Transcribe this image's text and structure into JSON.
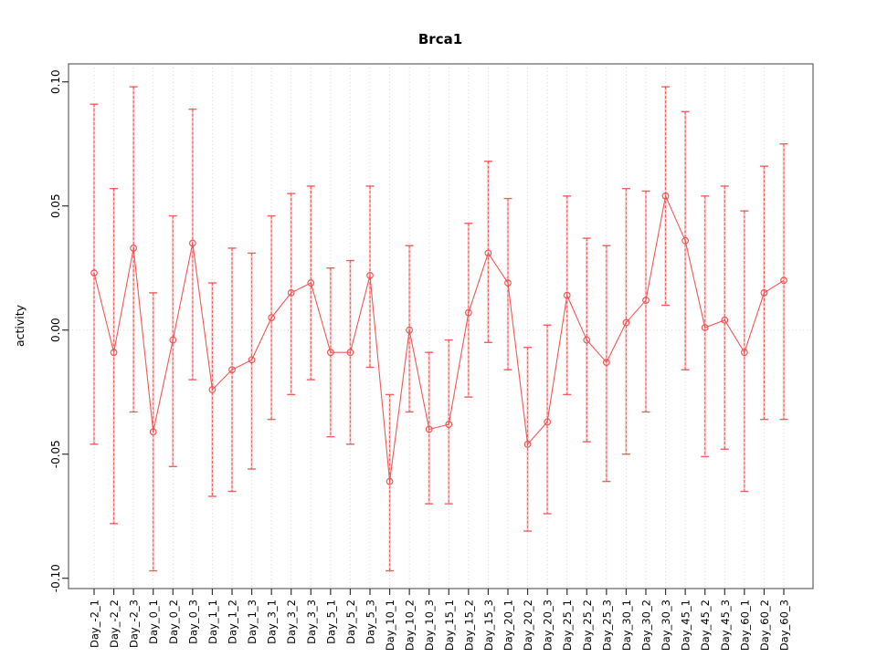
{
  "chart_data": {
    "type": "line",
    "title": "Brca1",
    "xlabel": "",
    "ylabel": "activity",
    "legend": "none",
    "grid": "vertical dotted gridline at every category; dotted horizontal line at 0",
    "marker": "open-circle",
    "error_bars": true,
    "categories": [
      "Day_-2_1",
      "Day_-2_2",
      "Day_-2_3",
      "Day_0_1",
      "Day_0_2",
      "Day_0_3",
      "Day_1_1",
      "Day_1_2",
      "Day_1_3",
      "Day_3_1",
      "Day_3_2",
      "Day_3_3",
      "Day_5_1",
      "Day_5_2",
      "Day_5_3",
      "Day_10_1",
      "Day_10_2",
      "Day_10_3",
      "Day_15_1",
      "Day_15_2",
      "Day_15_3",
      "Day_20_1",
      "Day_20_2",
      "Day_20_3",
      "Day_25_1",
      "Day_25_2",
      "Day_25_3",
      "Day_30_1",
      "Day_30_2",
      "Day_30_3",
      "Day_45_1",
      "Day_45_2",
      "Day_45_3",
      "Day_60_1",
      "Day_60_2",
      "Day_60_3"
    ],
    "series": [
      {
        "name": "activity",
        "values": [
          0.023,
          -0.009,
          0.033,
          -0.041,
          -0.004,
          0.035,
          -0.024,
          -0.016,
          -0.012,
          0.005,
          0.015,
          0.019,
          -0.009,
          -0.009,
          0.022,
          -0.061,
          0.0,
          -0.04,
          -0.038,
          0.007,
          0.031,
          0.019,
          -0.046,
          -0.037,
          0.014,
          -0.004,
          -0.013,
          0.003,
          0.012,
          0.054,
          0.036,
          0.001,
          0.004,
          -0.009,
          0.015,
          0.02
        ],
        "upper": [
          0.091,
          0.057,
          0.098,
          0.015,
          0.046,
          0.089,
          0.019,
          0.033,
          0.031,
          0.046,
          0.055,
          0.058,
          0.025,
          0.028,
          0.058,
          -0.026,
          0.034,
          -0.009,
          -0.004,
          0.043,
          0.068,
          0.053,
          -0.007,
          0.002,
          0.054,
          0.037,
          0.034,
          0.057,
          0.056,
          0.098,
          0.088,
          0.054,
          0.058,
          0.048,
          0.066,
          0.075
        ],
        "lower": [
          -0.046,
          -0.078,
          -0.033,
          -0.097,
          -0.055,
          -0.02,
          -0.067,
          -0.065,
          -0.056,
          -0.036,
          -0.026,
          -0.02,
          -0.043,
          -0.046,
          -0.015,
          -0.097,
          -0.033,
          -0.07,
          -0.07,
          -0.027,
          -0.005,
          -0.016,
          -0.081,
          -0.074,
          -0.026,
          -0.045,
          -0.061,
          -0.05,
          -0.033,
          0.01,
          -0.016,
          -0.051,
          -0.048,
          -0.065,
          -0.036,
          -0.036
        ]
      }
    ],
    "yticks": [
      "-0.10",
      "-0.05",
      "0.00",
      "0.05",
      "0.10"
    ],
    "ytick_values": [
      -0.1,
      -0.05,
      0.0,
      0.05,
      0.1
    ],
    "ylim": [
      -0.104,
      0.107
    ],
    "zero_line": true,
    "colors": {
      "series": "#f04f4f",
      "series_light": "#f8a6a6",
      "grid": "#d8d8d8",
      "zero_line": "#d8d8d8",
      "border": "#6e6e6e",
      "tick": "#333333",
      "text": "#000000",
      "background": "#ffffff"
    }
  }
}
